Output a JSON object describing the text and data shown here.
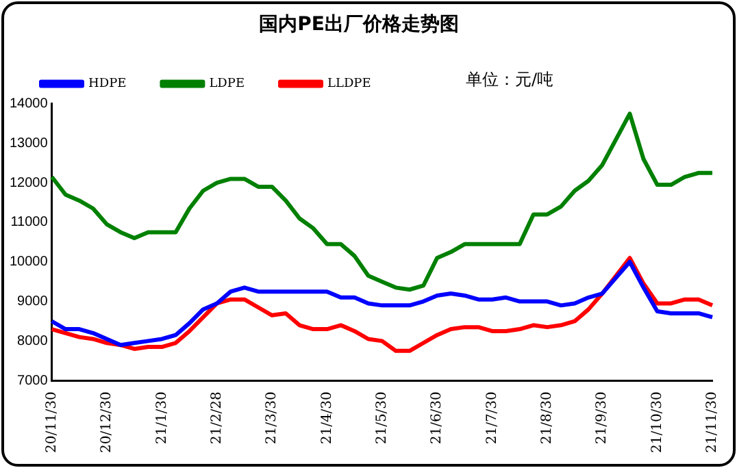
{
  "chart_data": {
    "type": "line",
    "title": "国内PE出厂价格走势图",
    "annotations": [
      "单位：元/吨"
    ],
    "categories": [
      "20/11/30",
      null,
      null,
      null,
      "20/12/30",
      null,
      null,
      null,
      "21/1/30",
      null,
      null,
      null,
      "21/2/28",
      null,
      null,
      null,
      "21/3/30",
      null,
      null,
      null,
      "21/4/30",
      null,
      null,
      null,
      "21/5/30",
      null,
      null,
      null,
      "21/6/30",
      null,
      null,
      null,
      "21/7/30",
      null,
      null,
      null,
      "21/8/30",
      null,
      null,
      null,
      "21/9/30",
      null,
      null,
      null,
      "21/10/30",
      null,
      null,
      null,
      "21/11/30"
    ],
    "series": [
      {
        "name": "HDPE",
        "color": "#0000ff",
        "values": [
          8500,
          8300,
          8300,
          8200,
          8050,
          7900,
          7950,
          8000,
          8050,
          8150,
          8450,
          8800,
          8950,
          9250,
          9350,
          9250,
          9250,
          9250,
          9250,
          9250,
          9250,
          9100,
          9100,
          8950,
          8900,
          8900,
          8900,
          9000,
          9150,
          9200,
          9150,
          9050,
          9050,
          9100,
          9000,
          9000,
          9000,
          8900,
          8950,
          9100,
          9200,
          9600,
          10000,
          9350,
          8750,
          8700,
          8700,
          8700,
          8600
        ]
      },
      {
        "name": "LDPE",
        "color": "#008000",
        "values": [
          12150,
          11700,
          11550,
          11350,
          10950,
          10750,
          10600,
          10750,
          10750,
          10750,
          11350,
          11800,
          12000,
          12100,
          12100,
          11900,
          11900,
          11550,
          11100,
          10850,
          10450,
          10450,
          10150,
          9650,
          9500,
          9350,
          9300,
          9400,
          10100,
          10250,
          10450,
          10450,
          10450,
          10450,
          10450,
          11200,
          11200,
          11400,
          11800,
          12050,
          12450,
          13100,
          13750,
          12600,
          11950,
          11950,
          12150,
          12250,
          12250
        ]
      },
      {
        "name": "LLDPE",
        "color": "#ff0000",
        "values": [
          8300,
          8200,
          8100,
          8050,
          7950,
          7900,
          7800,
          7850,
          7850,
          7950,
          8250,
          8600,
          8950,
          9050,
          9050,
          8850,
          8650,
          8700,
          8400,
          8300,
          8300,
          8400,
          8250,
          8050,
          8000,
          7750,
          7750,
          7950,
          8150,
          8300,
          8350,
          8350,
          8250,
          8250,
          8300,
          8400,
          8350,
          8400,
          8500,
          8800,
          9200,
          9650,
          10100,
          9450,
          8950,
          8950,
          9050,
          9050,
          8900
        ]
      }
    ],
    "ylim": [
      7000,
      14000
    ],
    "yticks": [
      7000,
      8000,
      9000,
      10000,
      11000,
      12000,
      13000,
      14000
    ],
    "grid": false,
    "legend": "top",
    "marker": "none",
    "line_style": "solid"
  }
}
